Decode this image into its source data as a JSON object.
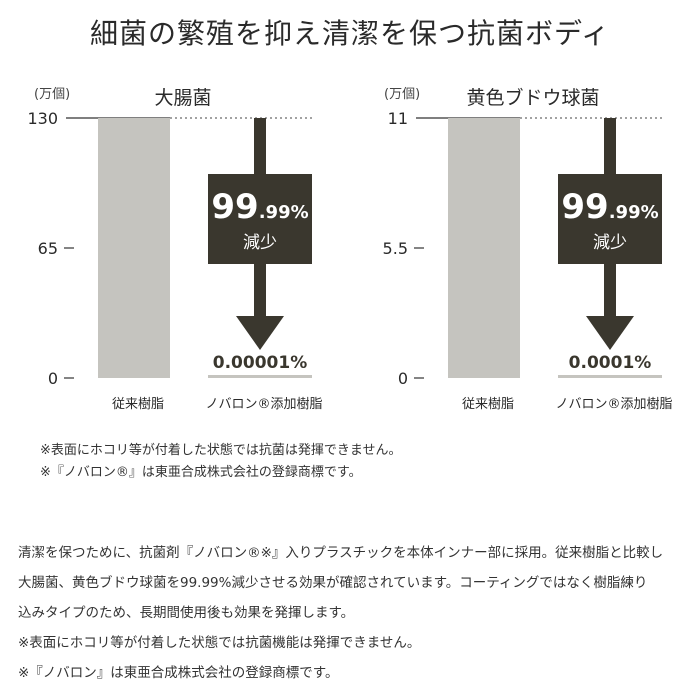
{
  "page": {
    "title": "細菌の繁殖を抑え清潔を保つ抗菌ボディ"
  },
  "colors": {
    "conventional_bar": "#c5c4bf",
    "arrow": "#3a372e",
    "label_box": "#3a372e",
    "text": "#2a2a2a"
  },
  "chart_data": [
    {
      "type": "bar",
      "title": "大腸菌",
      "unit_label": "(万個)",
      "categories": [
        "従来樹脂",
        "ノバロン®添加樹脂"
      ],
      "values": [
        130,
        1e-05
      ],
      "ylim": [
        0,
        130
      ],
      "yticks": [
        0,
        65,
        130
      ],
      "ytick_labels": [
        "0",
        "65",
        "130"
      ],
      "reduction_big": "99",
      "reduction_small": ".99%",
      "reduction_label": "減少",
      "result_label": "0.00001%"
    },
    {
      "type": "bar",
      "title": "黄色ブドウ球菌",
      "unit_label": "(万個)",
      "categories": [
        "従来樹脂",
        "ノバロン®添加樹脂"
      ],
      "values": [
        11,
        1.1e-06
      ],
      "ylim": [
        0,
        11
      ],
      "yticks": [
        0,
        5.5,
        11
      ],
      "ytick_labels": [
        "0",
        "5.5",
        "11"
      ],
      "reduction_big": "99",
      "reduction_small": ".99%",
      "reduction_label": "減少",
      "result_label": "0.0001%"
    }
  ],
  "notes": [
    "※表面にホコリ等が付着した状態では抗菌は発揮できません。",
    "※『ノバロン®』は東亜合成株式会社の登録商標です。"
  ],
  "body": {
    "lines": [
      "清潔を保つために、抗菌剤『ノバロン®※』入りプラスチックを本体インナー部に採用。従来樹脂と比較し",
      "大腸菌、黄色ブドウ球菌を99.99%減少させる効果が確認されています。コーティングではなく樹脂練り",
      "込みタイプのため、長期間使用後も効果を発揮します。",
      "※表面にホコリ等が付着した状態では抗菌機能は発揮できません。",
      "※『ノバロン』は東亜合成株式会社の登録商標です。"
    ]
  }
}
